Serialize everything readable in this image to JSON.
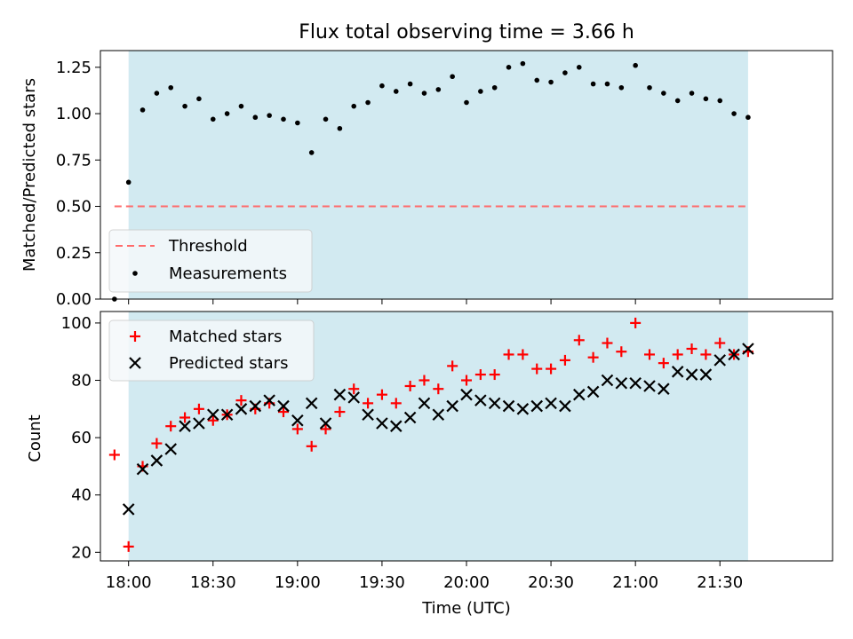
{
  "colors": {
    "span_fill": "#add8e6",
    "threshold": "#ff6b6b",
    "measurements": "#000000",
    "matched": "#ff0000",
    "predicted": "#000000"
  },
  "chart_data": [
    {
      "type": "scatter",
      "title": "Flux total observing time = 3.66 h",
      "xlabel": "",
      "ylabel": "Matched/Predicted stars",
      "xlim": [
        "17:50",
        "22:10"
      ],
      "ylim": [
        0,
        1.34
      ],
      "yticks": [
        "0.00",
        "0.25",
        "0.50",
        "0.75",
        "1.00",
        "1.25"
      ],
      "observing_span": [
        "18:00",
        "21:40"
      ],
      "legend_position": "lower-left",
      "threshold": {
        "name": "Threshold",
        "y": 0.5,
        "x_range": [
          "17:55",
          "21:40"
        ]
      },
      "series": [
        {
          "name": "Measurements",
          "x": [
            "17:55",
            "18:00",
            "18:05",
            "18:10",
            "18:15",
            "18:20",
            "18:25",
            "18:30",
            "18:35",
            "18:40",
            "18:45",
            "18:50",
            "18:55",
            "19:00",
            "19:05",
            "19:10",
            "19:15",
            "19:20",
            "19:25",
            "19:30",
            "19:35",
            "19:40",
            "19:45",
            "19:50",
            "19:55",
            "20:00",
            "20:05",
            "20:10",
            "20:15",
            "20:20",
            "20:25",
            "20:30",
            "20:35",
            "20:40",
            "20:45",
            "20:50",
            "20:55",
            "21:00",
            "21:05",
            "21:10",
            "21:15",
            "21:20",
            "21:25",
            "21:30",
            "21:35",
            "21:40"
          ],
          "y": [
            0.0,
            0.63,
            1.02,
            1.11,
            1.14,
            1.04,
            1.08,
            0.97,
            1.0,
            1.04,
            0.98,
            0.99,
            0.97,
            0.95,
            0.79,
            0.97,
            0.92,
            1.04,
            1.06,
            1.15,
            1.12,
            1.16,
            1.11,
            1.13,
            1.2,
            1.06,
            1.12,
            1.14,
            1.25,
            1.27,
            1.18,
            1.17,
            1.22,
            1.25,
            1.16,
            1.16,
            1.14,
            1.26,
            1.14,
            1.11,
            1.07,
            1.11,
            1.08,
            1.07,
            1.0,
            0.98
          ]
        }
      ]
    },
    {
      "type": "scatter",
      "title": "",
      "xlabel": "Time (UTC)",
      "ylabel": "Count",
      "xlim": [
        "17:50",
        "22:10"
      ],
      "ylim": [
        17,
        104
      ],
      "yticks": [
        "20",
        "40",
        "60",
        "80",
        "100"
      ],
      "xticks": [
        "18:00",
        "18:30",
        "19:00",
        "19:30",
        "20:00",
        "20:30",
        "21:00",
        "21:30"
      ],
      "observing_span": [
        "18:00",
        "21:40"
      ],
      "legend_position": "upper-left",
      "series": [
        {
          "name": "Matched stars",
          "marker": "+",
          "x": [
            "17:55",
            "18:00",
            "18:05",
            "18:10",
            "18:15",
            "18:20",
            "18:25",
            "18:30",
            "18:35",
            "18:40",
            "18:45",
            "18:50",
            "18:55",
            "19:00",
            "19:05",
            "19:10",
            "19:15",
            "19:20",
            "19:25",
            "19:30",
            "19:35",
            "19:40",
            "19:45",
            "19:50",
            "19:55",
            "20:00",
            "20:05",
            "20:10",
            "20:15",
            "20:20",
            "20:25",
            "20:30",
            "20:35",
            "20:40",
            "20:45",
            "20:50",
            "20:55",
            "21:00",
            "21:05",
            "21:10",
            "21:15",
            "21:20",
            "21:25",
            "21:30",
            "21:35",
            "21:40"
          ],
          "y": [
            54,
            22,
            50,
            58,
            64,
            67,
            70,
            66,
            68,
            73,
            70,
            72,
            69,
            63,
            57,
            63,
            69,
            77,
            72,
            75,
            72,
            78,
            80,
            77,
            85,
            80,
            82,
            82,
            89,
            89,
            84,
            84,
            87,
            94,
            88,
            93,
            90,
            100,
            89,
            86,
            89,
            91,
            89,
            93,
            89,
            90
          ]
        },
        {
          "name": "Predicted stars",
          "marker": "x",
          "x": [
            "18:00",
            "18:05",
            "18:10",
            "18:15",
            "18:20",
            "18:25",
            "18:30",
            "18:35",
            "18:40",
            "18:45",
            "18:50",
            "18:55",
            "19:00",
            "19:05",
            "19:10",
            "19:15",
            "19:20",
            "19:25",
            "19:30",
            "19:35",
            "19:40",
            "19:45",
            "19:50",
            "19:55",
            "20:00",
            "20:05",
            "20:10",
            "20:15",
            "20:20",
            "20:25",
            "20:30",
            "20:35",
            "20:40",
            "20:45",
            "20:50",
            "20:55",
            "21:00",
            "21:05",
            "21:10",
            "21:15",
            "21:20",
            "21:25",
            "21:30",
            "21:35",
            "21:40"
          ],
          "y": [
            35,
            49,
            52,
            56,
            64,
            65,
            68,
            68,
            70,
            71,
            73,
            71,
            66,
            72,
            65,
            75,
            74,
            68,
            65,
            64,
            67,
            72,
            68,
            71,
            75,
            73,
            72,
            71,
            70,
            71,
            72,
            71,
            75,
            76,
            80,
            79,
            79,
            78,
            77,
            83,
            82,
            82,
            87,
            89,
            91
          ]
        }
      ]
    }
  ]
}
